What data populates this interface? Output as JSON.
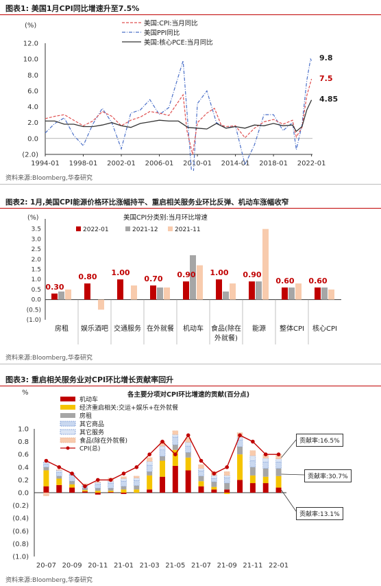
{
  "panels": {
    "fig1": {
      "title": "图表1:  美国1月CPI同比增速升至7.5%",
      "source": "资料来源:Bloomberg,华泰研究"
    },
    "fig2": {
      "title": "图表2:  1月,美国CPI能源价格环比涨幅持平、重启相关服务业环比反弹、机动车涨幅收窄",
      "source": "资料来源:Bloomberg,华泰研究"
    },
    "fig3": {
      "title": "图表3:  重启相关服务业对CPI环比增长贡献率回升",
      "source": "资料来源:Bloomberg,华泰研究"
    }
  },
  "colors": {
    "red": "#c00000",
    "red_light": "#e05050",
    "gray": "#a6a6a6",
    "peach": "#f8cbad",
    "yellow": "#f5c400",
    "blue_dash": "#4a6fc8",
    "black": "#333333",
    "accent_rule": "#c00000"
  },
  "chart_data": [
    {
      "type": "line",
      "ylabel": "(%)",
      "ylim": [
        -2.0,
        12.0
      ],
      "yticks": [
        "12.0",
        "10.0",
        "8.0",
        "6.0",
        "4.0",
        "2.0",
        "0.0",
        "(2.0)"
      ],
      "xticks": [
        "1994-01",
        "1998-01",
        "2002-01",
        "2006-01",
        "2010-01",
        "2014-01",
        "2018-01",
        "2022-01"
      ],
      "x_range": [
        1994.0,
        2022.1
      ],
      "legend": [
        "美国:CPI:当月同比",
        "美国PPI同比",
        "美国:核心PCE:当月同比"
      ],
      "legend_position": "top-center",
      "end_labels": [
        "9.8",
        "7.5",
        "4.85"
      ],
      "series": [
        {
          "name": "美国:CPI:当月同比",
          "style": "dashed-red",
          "points": [
            [
              1994,
              2.5
            ],
            [
              1995,
              2.8
            ],
            [
              1996,
              3.0
            ],
            [
              1997,
              2.3
            ],
            [
              1998,
              1.6
            ],
            [
              1999,
              2.2
            ],
            [
              2000,
              3.4
            ],
            [
              2001,
              2.8
            ],
            [
              2002,
              1.6
            ],
            [
              2003,
              2.3
            ],
            [
              2004,
              2.7
            ],
            [
              2005,
              3.4
            ],
            [
              2006,
              3.2
            ],
            [
              2007,
              2.9
            ],
            [
              2008.5,
              5.5
            ],
            [
              2008.9,
              1.0
            ],
            [
              2009.5,
              -2.0
            ],
            [
              2010,
              2.0
            ],
            [
              2011,
              3.2
            ],
            [
              2011.8,
              3.8
            ],
            [
              2012.5,
              1.7
            ],
            [
              2013,
              1.5
            ],
            [
              2014,
              1.6
            ],
            [
              2015,
              0.1
            ],
            [
              2016,
              1.3
            ],
            [
              2017,
              2.1
            ],
            [
              2018,
              2.4
            ],
            [
              2019,
              1.8
            ],
            [
              2020,
              2.3
            ],
            [
              2020.4,
              0.2
            ],
            [
              2021,
              1.4
            ],
            [
              2021.5,
              5.4
            ],
            [
              2022.0,
              7.5
            ]
          ]
        },
        {
          "name": "美国PPI同比",
          "style": "dashdot-blue",
          "points": [
            [
              1994,
              0.7
            ],
            [
              1995,
              1.9
            ],
            [
              1996,
              2.6
            ],
            [
              1997,
              0.4
            ],
            [
              1998,
              -0.9
            ],
            [
              1999,
              1.8
            ],
            [
              2000,
              3.8
            ],
            [
              2001,
              2.0
            ],
            [
              2002,
              -1.3
            ],
            [
              2003,
              3.2
            ],
            [
              2004,
              3.6
            ],
            [
              2005,
              4.9
            ],
            [
              2006,
              3.0
            ],
            [
              2007,
              3.9
            ],
            [
              2008.5,
              9.8
            ],
            [
              2009.5,
              -6.0
            ],
            [
              2010,
              4.4
            ],
            [
              2011,
              6.0
            ],
            [
              2012,
              2.0
            ],
            [
              2013,
              1.3
            ],
            [
              2014,
              1.6
            ],
            [
              2015,
              -3.3
            ],
            [
              2016,
              -0.8
            ],
            [
              2017,
              3.0
            ],
            [
              2018,
              3.0
            ],
            [
              2019,
              1.0
            ],
            [
              2020,
              2.0
            ],
            [
              2020.4,
              -1.4
            ],
            [
              2021,
              1.7
            ],
            [
              2021.5,
              7.3
            ],
            [
              2021.9,
              10.0
            ],
            [
              2022.0,
              9.8
            ]
          ]
        },
        {
          "name": "美国:核心PCE:当月同比",
          "style": "solid-black",
          "points": [
            [
              1994,
              2.2
            ],
            [
              1995,
              2.2
            ],
            [
              1996,
              1.8
            ],
            [
              1997,
              1.8
            ],
            [
              1998,
              1.5
            ],
            [
              1999,
              1.5
            ],
            [
              2000,
              1.7
            ],
            [
              2001,
              2.0
            ],
            [
              2002,
              1.6
            ],
            [
              2003,
              1.4
            ],
            [
              2004,
              1.9
            ],
            [
              2005,
              2.1
            ],
            [
              2006,
              2.3
            ],
            [
              2007,
              2.2
            ],
            [
              2008,
              2.2
            ],
            [
              2009,
              1.4
            ],
            [
              2010,
              1.3
            ],
            [
              2011,
              1.2
            ],
            [
              2012,
              1.9
            ],
            [
              2013,
              1.3
            ],
            [
              2014,
              1.5
            ],
            [
              2015,
              1.3
            ],
            [
              2016,
              1.7
            ],
            [
              2017,
              1.6
            ],
            [
              2018,
              1.9
            ],
            [
              2019,
              1.6
            ],
            [
              2020,
              1.7
            ],
            [
              2020.4,
              0.9
            ],
            [
              2021,
              1.5
            ],
            [
              2021.5,
              3.6
            ],
            [
              2022.0,
              4.85
            ]
          ]
        }
      ]
    },
    {
      "type": "bar",
      "title": "美国CPI分类别:当月环比增速",
      "ylabel": "(%)",
      "ylim": [
        -1.0,
        4.0
      ],
      "yticks": [
        "4.0",
        "3.5",
        "3.0",
        "2.5",
        "2.0",
        "1.5",
        "1.0",
        "0.5",
        "0.0",
        "(0.5)",
        "(1.0)"
      ],
      "categories": [
        "房租",
        "娱乐酒吧",
        "交通服务",
        "在外就餐",
        "机动车",
        "食品(除在外就餐)",
        "能源",
        "整体CPI",
        "核心CPI"
      ],
      "category_lines": [
        [
          "房租"
        ],
        [
          "娱乐酒吧"
        ],
        [
          "交通服务"
        ],
        [
          "在外就餐"
        ],
        [
          "机动车"
        ],
        [
          "食品(除在",
          "外就餐)"
        ],
        [
          "能源"
        ],
        [
          "整体CPI"
        ],
        [
          "核心CPI"
        ]
      ],
      "series": [
        {
          "name": "2022-01",
          "values": [
            0.3,
            0.8,
            1.0,
            0.7,
            0.9,
            1.0,
            0.9,
            0.6,
            0.6
          ]
        },
        {
          "name": "2021-12",
          "values": [
            0.4,
            0.0,
            0.0,
            0.6,
            2.2,
            0.4,
            0.9,
            0.6,
            0.6
          ]
        },
        {
          "name": "2021-11",
          "values": [
            0.5,
            -0.5,
            0.7,
            0.6,
            1.7,
            0.8,
            3.5,
            0.8,
            0.5
          ]
        }
      ],
      "data_labels": [
        "0.30",
        "0.80",
        "1.00",
        "0.70",
        "0.90",
        "1.00",
        "0.90",
        "0.60",
        "0.60"
      ],
      "legend_position": "top"
    },
    {
      "type": "bar",
      "stacked": true,
      "title": "各主要分项对CPI环比增速的贡献(百分点)",
      "ylabel": "%",
      "ylim": [
        -1.0,
        1.0
      ],
      "yticks": [
        "1.0",
        "0.8",
        "0.6",
        "0.4",
        "0.2",
        "0.0",
        "(0.2)",
        "(0.4)",
        "(0.6)",
        "(0.8)",
        "(1.0)"
      ],
      "categories": [
        "20-07",
        "20-08",
        "20-09",
        "20-10",
        "20-11",
        "20-12",
        "21-01",
        "21-02",
        "21-03",
        "21-04",
        "21-05",
        "21-06",
        "21-07",
        "21-08",
        "21-09",
        "21-10",
        "21-11",
        "21-12",
        "22-01"
      ],
      "xtick_labels": [
        "20-07",
        "20-09",
        "20-11",
        "21-01",
        "21-03",
        "21-05",
        "21-07",
        "21-09",
        "21-11",
        "22-01"
      ],
      "series": [
        {
          "name": "机动车",
          "values": [
            0.1,
            0.12,
            0.08,
            0.02,
            -0.03,
            0.01,
            -0.02,
            0.0,
            0.05,
            0.25,
            0.42,
            0.35,
            0.1,
            0.05,
            0.05,
            0.2,
            0.15,
            0.15,
            0.08
          ]
        },
        {
          "name": "经济重启相关:交运+娱乐+在外就餐",
          "values": [
            0.25,
            0.1,
            0.05,
            0.02,
            0.03,
            0.02,
            0.05,
            0.05,
            0.22,
            0.25,
            0.25,
            0.2,
            0.08,
            0.04,
            -0.02,
            0.4,
            0.12,
            0.1,
            0.18
          ]
        },
        {
          "name": "房租",
          "values": [
            0.05,
            0.04,
            0.05,
            0.03,
            0.04,
            0.04,
            0.05,
            0.06,
            0.06,
            0.07,
            0.08,
            0.08,
            0.08,
            0.08,
            0.1,
            0.12,
            0.13,
            0.13,
            0.12
          ]
        },
        {
          "name": "其它商品",
          "values": [
            0.05,
            0.06,
            0.1,
            0.03,
            0.06,
            0.08,
            0.08,
            0.08,
            0.1,
            0.1,
            0.12,
            0.1,
            0.08,
            0.05,
            0.08,
            0.1,
            0.1,
            0.1,
            0.1
          ]
        },
        {
          "name": "其它服务",
          "values": [
            0.03,
            0.03,
            0.02,
            0.02,
            0.03,
            0.03,
            0.04,
            0.04,
            0.06,
            0.06,
            0.04,
            0.06,
            0.04,
            0.05,
            0.04,
            0.05,
            0.08,
            0.06,
            0.05
          ]
        },
        {
          "name": "食品(除在外就餐)",
          "values": [
            -0.05,
            0.01,
            0.0,
            0.02,
            0.01,
            0.05,
            0.03,
            0.03,
            0.06,
            0.07,
            0.06,
            0.07,
            0.06,
            0.06,
            0.06,
            0.07,
            0.08,
            0.06,
            0.07
          ]
        }
      ],
      "line_series": {
        "name": "CPI(总)",
        "values": [
          0.5,
          0.4,
          0.3,
          0.1,
          0.2,
          0.2,
          0.3,
          0.4,
          0.6,
          0.8,
          0.6,
          0.9,
          0.5,
          0.3,
          0.4,
          0.9,
          0.8,
          0.6,
          0.6
        ]
      },
      "annotations": [
        "贡献率:16.5%",
        "贡献率:30.7%",
        "贡献率:13.1%"
      ],
      "legend_position": "top-left"
    }
  ]
}
